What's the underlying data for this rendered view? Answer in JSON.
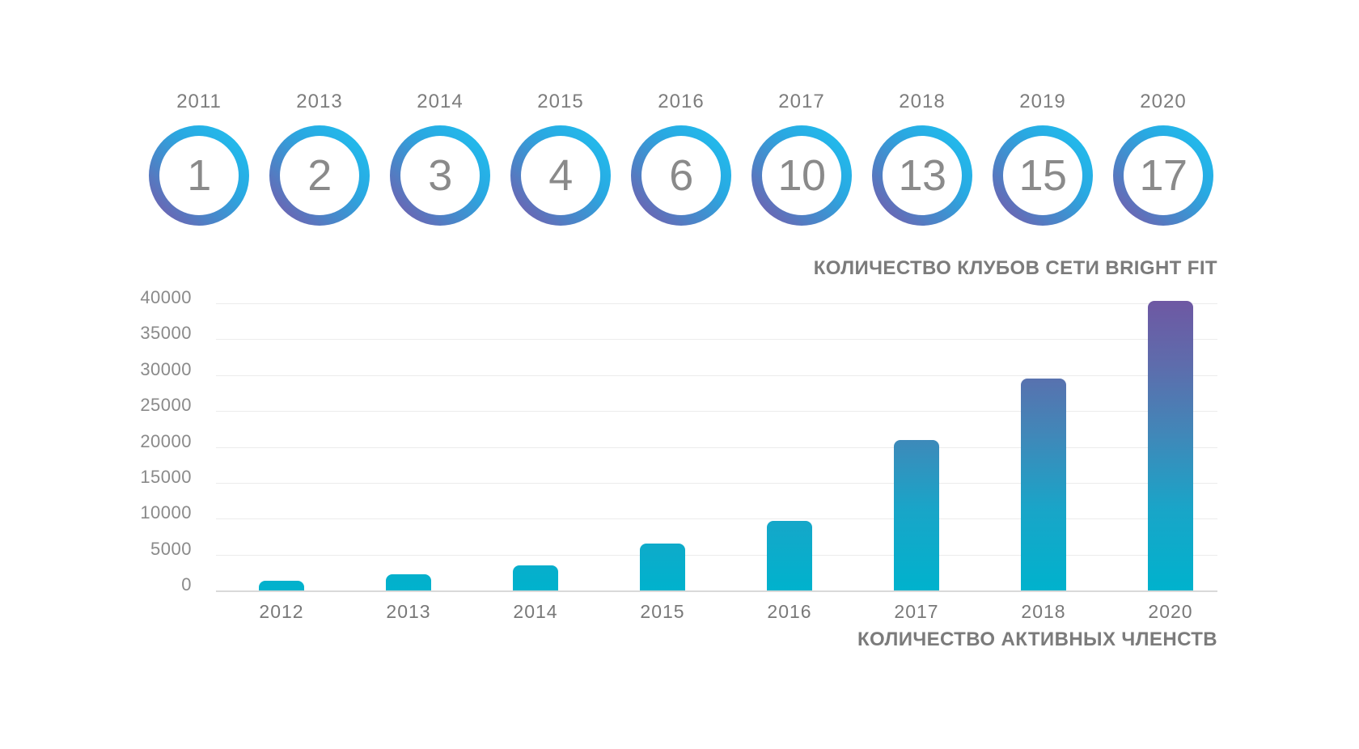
{
  "page": {
    "background": "#ffffff"
  },
  "clubs": {
    "title": "КОЛИЧЕСТВО КЛУБОВ СЕТИ BRIGHT FIT",
    "items": [
      {
        "year": "2011",
        "count": "1"
      },
      {
        "year": "2013",
        "count": "2"
      },
      {
        "year": "2014",
        "count": "3"
      },
      {
        "year": "2015",
        "count": "4"
      },
      {
        "year": "2016",
        "count": "6"
      },
      {
        "year": "2017",
        "count": "10"
      },
      {
        "year": "2018",
        "count": "13"
      },
      {
        "year": "2019",
        "count": "15"
      },
      {
        "year": "2020",
        "count": "17"
      }
    ],
    "ring_gradient": [
      "#1fc2f0",
      "#29a9e2",
      "#4d82c6",
      "#7d55a8"
    ],
    "number_color": "#8a8a8a",
    "year_color": "#7d7d7d"
  },
  "chart_data": {
    "type": "bar",
    "title": "КОЛИЧЕСТВО АКТИВНЫХ ЧЛЕНСТВ",
    "categories": [
      "2012",
      "2013",
      "2014",
      "2015",
      "2016",
      "2017",
      "2018",
      "2020"
    ],
    "values": [
      1300,
      2300,
      3500,
      6500,
      9700,
      21000,
      29500,
      40300
    ],
    "y_ticks": [
      0,
      5000,
      10000,
      15000,
      20000,
      25000,
      30000,
      35000,
      40000
    ],
    "ylim": [
      0,
      40000
    ],
    "xlabel": "",
    "ylabel": "",
    "grid": true,
    "legend": false,
    "bar_gradient_bottom_to_top": [
      "#00b2cd",
      "#19a5c8",
      "#4286b8",
      "#5e6cac",
      "#6e58a3"
    ],
    "axis_label_color": "#8a8a8a",
    "gridline_color": "#ececec",
    "baseline_color": "#d9d9d9"
  }
}
